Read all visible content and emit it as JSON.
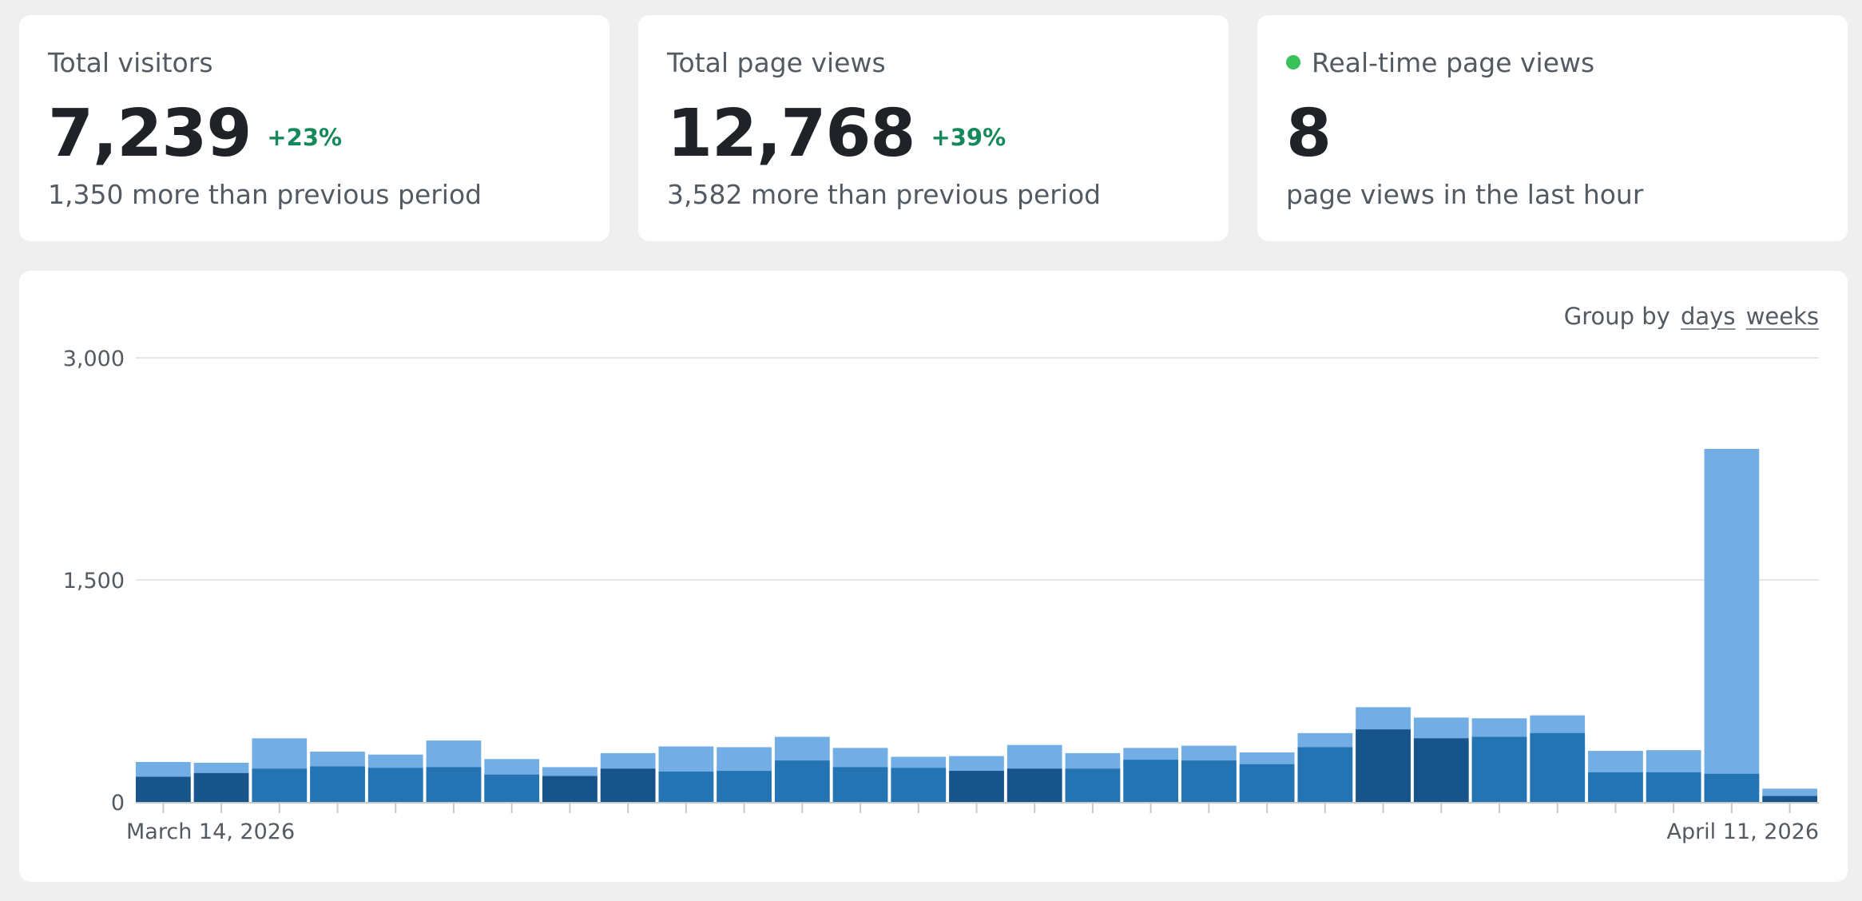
{
  "stats": {
    "visitors": {
      "label": "Total visitors",
      "value": "7,239",
      "change": "+23%",
      "sub": "1,350 more than previous period"
    },
    "pageviews": {
      "label": "Total page views",
      "value": "12,768",
      "change": "+39%",
      "sub": "3,582 more than previous period"
    },
    "realtime": {
      "label": "Real-time page views",
      "value": "8",
      "sub": "page views in the last hour",
      "dot_color": "#39c25a"
    }
  },
  "group_by": {
    "label": "Group by",
    "options": [
      "days",
      "weeks"
    ]
  },
  "colors": {
    "visitors_weekday": "#2473b3",
    "visitors_weekend": "#17548a",
    "pageviews": "#72ade4",
    "change_positive": "#15895a"
  },
  "chart_data": {
    "type": "bar",
    "stacked": true,
    "x_start": "March 14, 2026",
    "x_end": "April 11, 2026",
    "x_labels": [
      "March 14, 2026",
      "April 11, 2026"
    ],
    "ylim": [
      0,
      3000
    ],
    "y_ticks": [
      0,
      1500,
      3000
    ],
    "y_tick_labels": [
      "0",
      "1,500",
      "3,000"
    ],
    "grid": true,
    "weekend_days_highlighted": [
      0,
      1,
      7,
      8,
      14,
      15,
      21,
      22,
      28
    ],
    "series": [
      {
        "role": "visitors",
        "values": [
          170,
          195,
          225,
          240,
          230,
          235,
          185,
          175,
          225,
          205,
          210,
          280,
          235,
          230,
          210,
          225,
          225,
          285,
          280,
          255,
          370,
          490,
          430,
          440,
          465,
          200,
          200,
          190,
          40
        ]
      },
      {
        "role": "page_views",
        "values": [
          270,
          265,
          430,
          340,
          320,
          415,
          290,
          235,
          330,
          375,
          370,
          440,
          365,
          305,
          310,
          385,
          330,
          365,
          380,
          335,
          465,
          640,
          570,
          565,
          585,
          345,
          350,
          2385,
          90
        ]
      }
    ]
  }
}
